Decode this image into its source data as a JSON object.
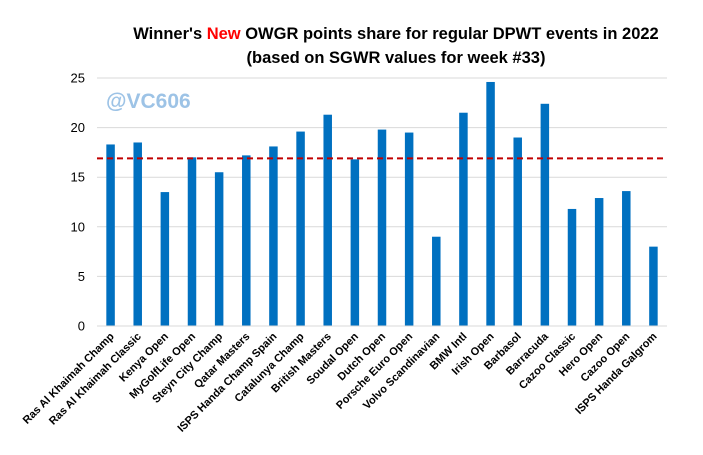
{
  "chart_data": {
    "type": "bar",
    "title_parts": [
      "Winner's ",
      "New",
      " OWGR points share for regular DPWT events in 2022"
    ],
    "subtitle": "(based on SGWR values for week #33)",
    "watermark": "@VC606",
    "categories": [
      "Ras Al Khaimah Champ",
      "Ras Al Khaimah Classic",
      "Kenya Open",
      "MyGolfLife Open",
      "Steyn City Champ",
      "Qatar Masters",
      "ISPS Handa Champ Spain",
      "Catalunya Champ",
      "British Masters",
      "Soudal Open",
      "Dutch Open",
      "Porsche Euro Open",
      "Volvo Scandinavian",
      "BMW Intl",
      "Irish Open",
      "Barbasol",
      "Barracuda",
      "Cazoo Classic",
      "Hero Open",
      "Cazoo Open",
      "ISPS Handa Galgrom"
    ],
    "values": [
      18.3,
      18.5,
      13.5,
      17.0,
      15.5,
      17.2,
      18.1,
      19.6,
      21.3,
      16.8,
      19.8,
      19.5,
      9.0,
      21.5,
      24.6,
      19.0,
      22.4,
      11.8,
      12.9,
      13.6,
      8.0
    ],
    "reference_line": 16.9,
    "ylim": [
      0,
      25
    ],
    "yticks": [
      0,
      5,
      10,
      15,
      20,
      25
    ],
    "grid": true,
    "colors": {
      "bar": "#0070c0",
      "reference": "#c00000",
      "grid": "#d9d9d9",
      "title_highlight": "#ff0000"
    }
  }
}
